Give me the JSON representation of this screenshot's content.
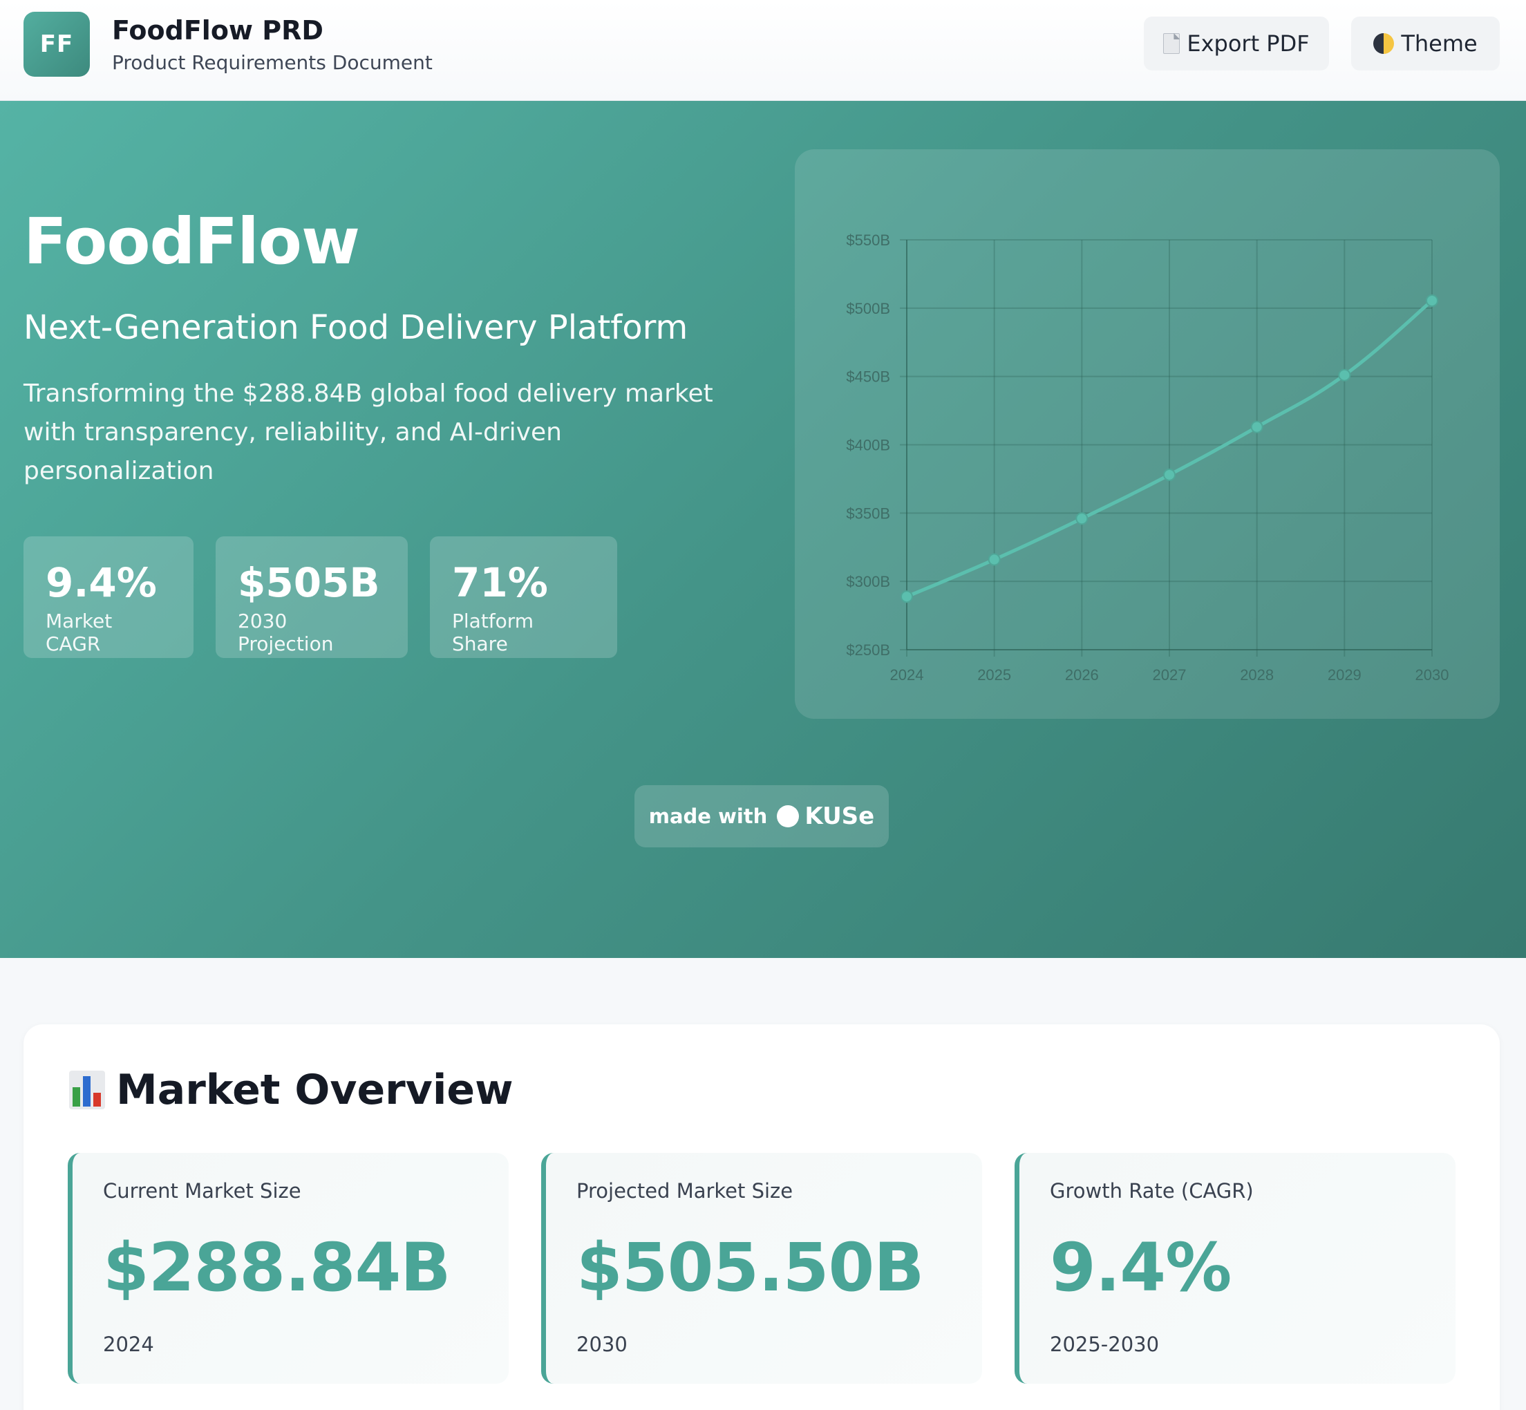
{
  "header": {
    "logo_text": "FF",
    "title": "FoodFlow PRD",
    "subtitle": "Product Requirements Document",
    "export_label": "Export PDF",
    "theme_label": "Theme"
  },
  "hero": {
    "title": "FoodFlow",
    "subtitle": "Next-Generation Food Delivery Platform",
    "description": "Transforming the $288.84B global food delivery market with transparency, reliability, and AI-driven personalization",
    "stats": [
      {
        "value": "9.4%",
        "label": "Market CAGR"
      },
      {
        "value": "$505B",
        "label": "2030 Projection"
      },
      {
        "value": "71%",
        "label": "Platform Share"
      }
    ],
    "made_with": "made with",
    "brand": "KUSe"
  },
  "chart_data": {
    "type": "line",
    "x": [
      "2024",
      "2025",
      "2026",
      "2027",
      "2028",
      "2029",
      "2030"
    ],
    "values": [
      288.84,
      316,
      346,
      378,
      413,
      451,
      505.5
    ],
    "y_ticks": [
      "$250B",
      "$300B",
      "$350B",
      "$400B",
      "$450B",
      "$500B",
      "$550B"
    ],
    "ylim": [
      250,
      550
    ],
    "grid": true,
    "line_color": "#5bbfae"
  },
  "market": {
    "title": "Market Overview",
    "cards": [
      {
        "label": "Current Market Size",
        "value": "$288.84B",
        "note": "2024"
      },
      {
        "label": "Projected Market Size",
        "value": "$505.50B",
        "note": "2030"
      },
      {
        "label": "Growth Rate (CAGR)",
        "value": "9.4%",
        "note": "2025-2030"
      }
    ]
  },
  "colors": {
    "accent": "#4aa597",
    "hero_start": "#55b3a5",
    "hero_end": "#377a70"
  }
}
